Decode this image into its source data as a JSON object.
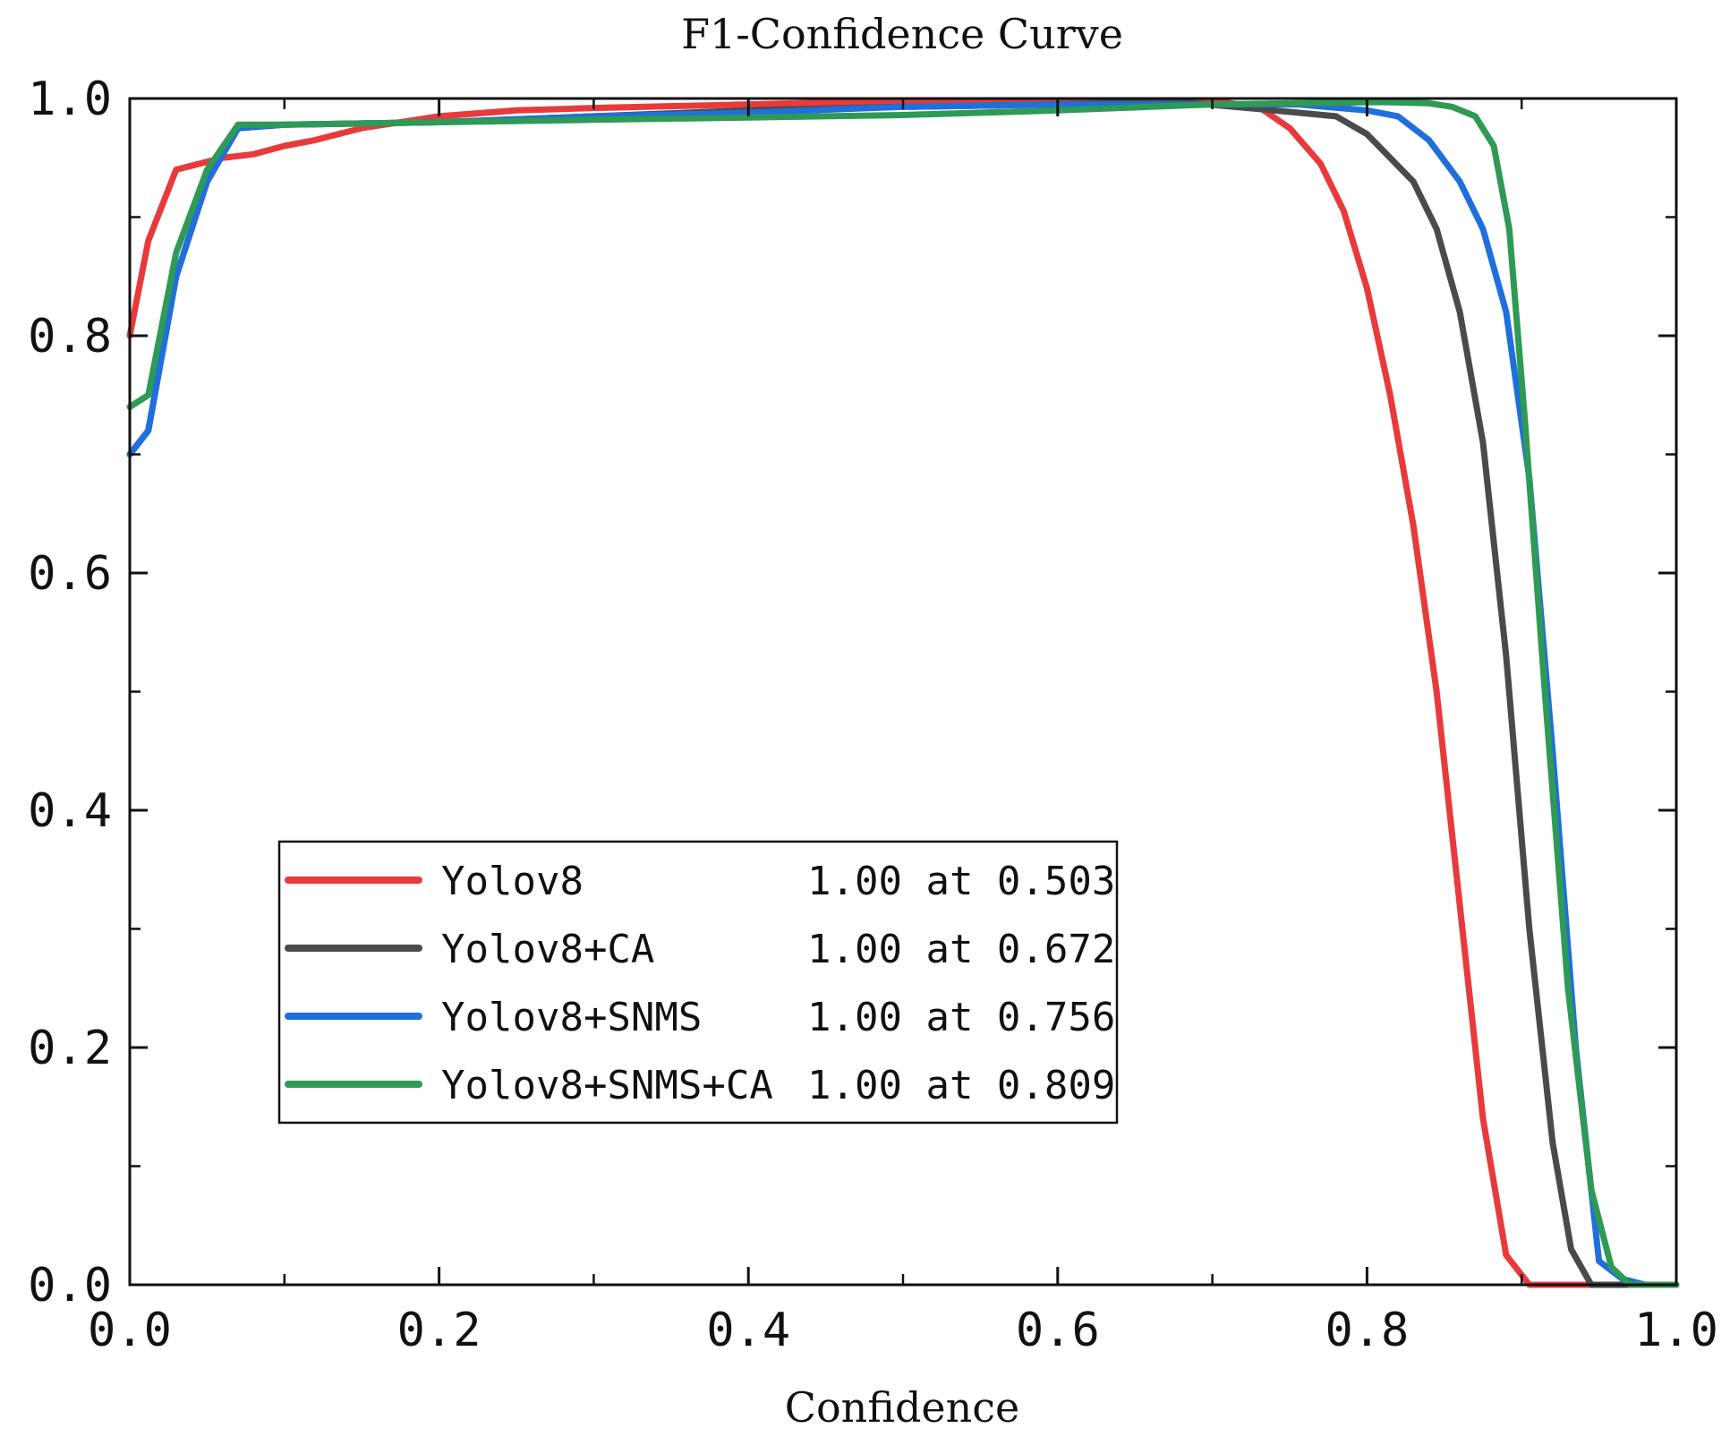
{
  "chart_data": {
    "type": "line",
    "title": "F1-Confidence Curve",
    "xlabel": "Confidence",
    "ylabel": "",
    "xlim": [
      0,
      1
    ],
    "ylim": [
      0,
      1
    ],
    "x_ticks": [
      0,
      0.2,
      0.4,
      0.6,
      0.8,
      1.0
    ],
    "x_tick_labels": [
      "0.0",
      "0.2",
      "0.4",
      "0.6",
      "0.8",
      "1.0"
    ],
    "y_ticks": [
      0,
      0.2,
      0.4,
      0.6,
      0.8,
      1.0
    ],
    "y_tick_labels": [
      "0.0",
      "0.2",
      "0.4",
      "0.6",
      "0.8",
      "1.0"
    ],
    "legend_position": "lower-left",
    "series": [
      {
        "name": "Yolov8",
        "summary": "1.00 at 0.503",
        "color": "#e83a3a",
        "points": [
          [
            0,
            0.8
          ],
          [
            0.012,
            0.88
          ],
          [
            0.03,
            0.94
          ],
          [
            0.06,
            0.95
          ],
          [
            0.08,
            0.953
          ],
          [
            0.1,
            0.96
          ],
          [
            0.12,
            0.965
          ],
          [
            0.15,
            0.975
          ],
          [
            0.2,
            0.985
          ],
          [
            0.25,
            0.99
          ],
          [
            0.3,
            0.992
          ],
          [
            0.4,
            0.995
          ],
          [
            0.5,
            0.998
          ],
          [
            0.6,
            0.998
          ],
          [
            0.7,
            0.998
          ],
          [
            0.73,
            0.993
          ],
          [
            0.75,
            0.975
          ],
          [
            0.77,
            0.945
          ],
          [
            0.785,
            0.905
          ],
          [
            0.8,
            0.84
          ],
          [
            0.815,
            0.75
          ],
          [
            0.83,
            0.64
          ],
          [
            0.845,
            0.5
          ],
          [
            0.86,
            0.32
          ],
          [
            0.875,
            0.14
          ],
          [
            0.89,
            0.025
          ],
          [
            0.905,
            0.0
          ],
          [
            1.0,
            0.0
          ]
        ]
      },
      {
        "name": "Yolov8+CA",
        "summary": "1.00 at 0.672",
        "color": "#4a4a4a",
        "points": [
          [
            0,
            0.7
          ],
          [
            0.012,
            0.72
          ],
          [
            0.03,
            0.85
          ],
          [
            0.05,
            0.93
          ],
          [
            0.07,
            0.975
          ],
          [
            0.1,
            0.978
          ],
          [
            0.2,
            0.98
          ],
          [
            0.3,
            0.985
          ],
          [
            0.4,
            0.99
          ],
          [
            0.5,
            0.993
          ],
          [
            0.6,
            0.995
          ],
          [
            0.672,
            0.998
          ],
          [
            0.74,
            0.99
          ],
          [
            0.78,
            0.985
          ],
          [
            0.8,
            0.97
          ],
          [
            0.815,
            0.95
          ],
          [
            0.83,
            0.93
          ],
          [
            0.845,
            0.89
          ],
          [
            0.86,
            0.82
          ],
          [
            0.875,
            0.71
          ],
          [
            0.89,
            0.53
          ],
          [
            0.905,
            0.3
          ],
          [
            0.92,
            0.12
          ],
          [
            0.932,
            0.03
          ],
          [
            0.945,
            0.0
          ],
          [
            1.0,
            0.0
          ]
        ]
      },
      {
        "name": "Yolov8+SNMS",
        "summary": "1.00 at 0.756",
        "color": "#1f6fdc",
        "points": [
          [
            0,
            0.7
          ],
          [
            0.012,
            0.72
          ],
          [
            0.03,
            0.85
          ],
          [
            0.05,
            0.93
          ],
          [
            0.07,
            0.975
          ],
          [
            0.1,
            0.978
          ],
          [
            0.2,
            0.98
          ],
          [
            0.3,
            0.985
          ],
          [
            0.4,
            0.988
          ],
          [
            0.5,
            0.993
          ],
          [
            0.6,
            0.995
          ],
          [
            0.756,
            0.995
          ],
          [
            0.8,
            0.99
          ],
          [
            0.82,
            0.985
          ],
          [
            0.84,
            0.965
          ],
          [
            0.86,
            0.93
          ],
          [
            0.875,
            0.89
          ],
          [
            0.89,
            0.82
          ],
          [
            0.905,
            0.68
          ],
          [
            0.92,
            0.45
          ],
          [
            0.935,
            0.2
          ],
          [
            0.95,
            0.02
          ],
          [
            0.965,
            0.005
          ],
          [
            0.98,
            0.0
          ],
          [
            1.0,
            0.0
          ]
        ]
      },
      {
        "name": "Yolov8+SNMS+CA",
        "summary": "1.00 at 0.809",
        "color": "#2e9a55",
        "points": [
          [
            0,
            0.74
          ],
          [
            0.012,
            0.75
          ],
          [
            0.03,
            0.87
          ],
          [
            0.05,
            0.94
          ],
          [
            0.07,
            0.978
          ],
          [
            0.1,
            0.978
          ],
          [
            0.2,
            0.98
          ],
          [
            0.3,
            0.982
          ],
          [
            0.4,
            0.984
          ],
          [
            0.5,
            0.986
          ],
          [
            0.6,
            0.99
          ],
          [
            0.7,
            0.995
          ],
          [
            0.809,
            0.997
          ],
          [
            0.84,
            0.996
          ],
          [
            0.855,
            0.993
          ],
          [
            0.87,
            0.985
          ],
          [
            0.882,
            0.96
          ],
          [
            0.892,
            0.89
          ],
          [
            0.902,
            0.73
          ],
          [
            0.915,
            0.5
          ],
          [
            0.93,
            0.25
          ],
          [
            0.945,
            0.08
          ],
          [
            0.958,
            0.015
          ],
          [
            0.97,
            0.0
          ],
          [
            1.0,
            0.0
          ]
        ]
      }
    ]
  }
}
